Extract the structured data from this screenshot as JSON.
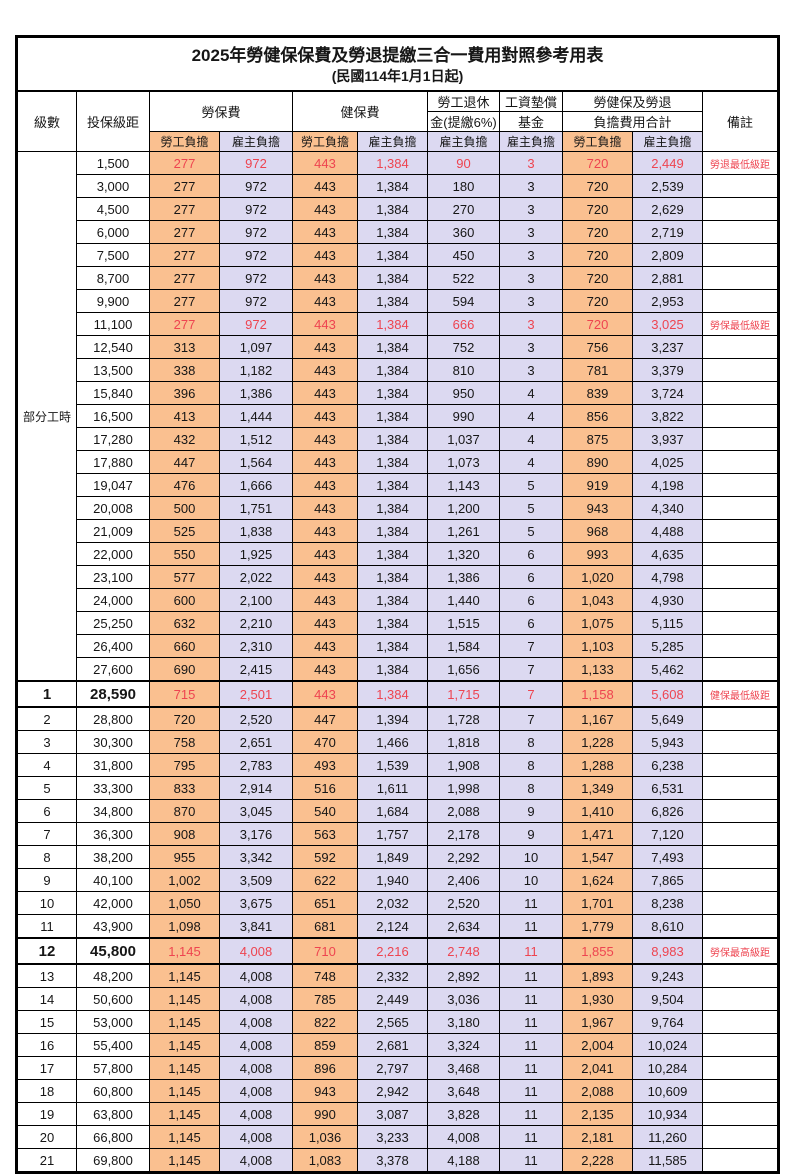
{
  "title": "2025年勞健保保費及勞退提繳三合一費用對照參考用表",
  "subtitle": "(民國114年1月1日起)",
  "header": {
    "level": "級數",
    "bracket": "投保級距",
    "labor_insurance": "勞保費",
    "health_insurance": "健保費",
    "pension_line1": "勞工退休",
    "pension_line2": "金(提繳6%)",
    "wage_fund_line1": "工資墊償",
    "wage_fund_line2": "基金",
    "total_line1": "勞健保及勞退",
    "total_line2": "負擔費用合計",
    "remark": "備註",
    "employee": "勞工負擔",
    "employer": "雇主負擔"
  },
  "part_time_label": "部分工時",
  "colors": {
    "employee_bg": "#FAC090",
    "employer_bg": "#DCD9F1",
    "highlight_red": "#EE4450",
    "border": "#000000"
  },
  "rows": [
    {
      "level": "",
      "bracket": "1,500",
      "li_emp": "277",
      "li_er": "972",
      "hi_emp": "443",
      "hi_er": "1,384",
      "pension": "90",
      "fund": "3",
      "tot_emp": "720",
      "tot_er": "2,449",
      "remark": "勞退最低級距",
      "red": true,
      "section": false
    },
    {
      "level": null,
      "bracket": "3,000",
      "li_emp": "277",
      "li_er": "972",
      "hi_emp": "443",
      "hi_er": "1,384",
      "pension": "180",
      "fund": "3",
      "tot_emp": "720",
      "tot_er": "2,539",
      "remark": "",
      "red": false,
      "section": false
    },
    {
      "level": null,
      "bracket": "4,500",
      "li_emp": "277",
      "li_er": "972",
      "hi_emp": "443",
      "hi_er": "1,384",
      "pension": "270",
      "fund": "3",
      "tot_emp": "720",
      "tot_er": "2,629",
      "remark": "",
      "red": false,
      "section": false
    },
    {
      "level": null,
      "bracket": "6,000",
      "li_emp": "277",
      "li_er": "972",
      "hi_emp": "443",
      "hi_er": "1,384",
      "pension": "360",
      "fund": "3",
      "tot_emp": "720",
      "tot_er": "2,719",
      "remark": "",
      "red": false,
      "section": false
    },
    {
      "level": null,
      "bracket": "7,500",
      "li_emp": "277",
      "li_er": "972",
      "hi_emp": "443",
      "hi_er": "1,384",
      "pension": "450",
      "fund": "3",
      "tot_emp": "720",
      "tot_er": "2,809",
      "remark": "",
      "red": false,
      "section": false
    },
    {
      "level": null,
      "bracket": "8,700",
      "li_emp": "277",
      "li_er": "972",
      "hi_emp": "443",
      "hi_er": "1,384",
      "pension": "522",
      "fund": "3",
      "tot_emp": "720",
      "tot_er": "2,881",
      "remark": "",
      "red": false,
      "section": false
    },
    {
      "level": null,
      "bracket": "9,900",
      "li_emp": "277",
      "li_er": "972",
      "hi_emp": "443",
      "hi_er": "1,384",
      "pension": "594",
      "fund": "3",
      "tot_emp": "720",
      "tot_er": "2,953",
      "remark": "",
      "red": false,
      "section": false
    },
    {
      "level": null,
      "bracket": "11,100",
      "li_emp": "277",
      "li_er": "972",
      "hi_emp": "443",
      "hi_er": "1,384",
      "pension": "666",
      "fund": "3",
      "tot_emp": "720",
      "tot_er": "3,025",
      "remark": "勞保最低級距",
      "red": true,
      "section": false
    },
    {
      "level": null,
      "bracket": "12,540",
      "li_emp": "313",
      "li_er": "1,097",
      "hi_emp": "443",
      "hi_er": "1,384",
      "pension": "752",
      "fund": "3",
      "tot_emp": "756",
      "tot_er": "3,237",
      "remark": "",
      "red": false,
      "section": false
    },
    {
      "level": null,
      "bracket": "13,500",
      "li_emp": "338",
      "li_er": "1,182",
      "hi_emp": "443",
      "hi_er": "1,384",
      "pension": "810",
      "fund": "3",
      "tot_emp": "781",
      "tot_er": "3,379",
      "remark": "",
      "red": false,
      "section": false
    },
    {
      "level": null,
      "bracket": "15,840",
      "li_emp": "396",
      "li_er": "1,386",
      "hi_emp": "443",
      "hi_er": "1,384",
      "pension": "950",
      "fund": "4",
      "tot_emp": "839",
      "tot_er": "3,724",
      "remark": "",
      "red": false,
      "section": false
    },
    {
      "level": null,
      "bracket": "16,500",
      "li_emp": "413",
      "li_er": "1,444",
      "hi_emp": "443",
      "hi_er": "1,384",
      "pension": "990",
      "fund": "4",
      "tot_emp": "856",
      "tot_er": "3,822",
      "remark": "",
      "red": false,
      "section": false
    },
    {
      "level": null,
      "bracket": "17,280",
      "li_emp": "432",
      "li_er": "1,512",
      "hi_emp": "443",
      "hi_er": "1,384",
      "pension": "1,037",
      "fund": "4",
      "tot_emp": "875",
      "tot_er": "3,937",
      "remark": "",
      "red": false,
      "section": false
    },
    {
      "level": null,
      "bracket": "17,880",
      "li_emp": "447",
      "li_er": "1,564",
      "hi_emp": "443",
      "hi_er": "1,384",
      "pension": "1,073",
      "fund": "4",
      "tot_emp": "890",
      "tot_er": "4,025",
      "remark": "",
      "red": false,
      "section": false
    },
    {
      "level": null,
      "bracket": "19,047",
      "li_emp": "476",
      "li_er": "1,666",
      "hi_emp": "443",
      "hi_er": "1,384",
      "pension": "1,143",
      "fund": "5",
      "tot_emp": "919",
      "tot_er": "4,198",
      "remark": "",
      "red": false,
      "section": false
    },
    {
      "level": null,
      "bracket": "20,008",
      "li_emp": "500",
      "li_er": "1,751",
      "hi_emp": "443",
      "hi_er": "1,384",
      "pension": "1,200",
      "fund": "5",
      "tot_emp": "943",
      "tot_er": "4,340",
      "remark": "",
      "red": false,
      "section": false
    },
    {
      "level": null,
      "bracket": "21,009",
      "li_emp": "525",
      "li_er": "1,838",
      "hi_emp": "443",
      "hi_er": "1,384",
      "pension": "1,261",
      "fund": "5",
      "tot_emp": "968",
      "tot_er": "4,488",
      "remark": "",
      "red": false,
      "section": false
    },
    {
      "level": null,
      "bracket": "22,000",
      "li_emp": "550",
      "li_er": "1,925",
      "hi_emp": "443",
      "hi_er": "1,384",
      "pension": "1,320",
      "fund": "6",
      "tot_emp": "993",
      "tot_er": "4,635",
      "remark": "",
      "red": false,
      "section": false
    },
    {
      "level": null,
      "bracket": "23,100",
      "li_emp": "577",
      "li_er": "2,022",
      "hi_emp": "443",
      "hi_er": "1,384",
      "pension": "1,386",
      "fund": "6",
      "tot_emp": "1,020",
      "tot_er": "4,798",
      "remark": "",
      "red": false,
      "section": false
    },
    {
      "level": null,
      "bracket": "24,000",
      "li_emp": "600",
      "li_er": "2,100",
      "hi_emp": "443",
      "hi_er": "1,384",
      "pension": "1,440",
      "fund": "6",
      "tot_emp": "1,043",
      "tot_er": "4,930",
      "remark": "",
      "red": false,
      "section": false
    },
    {
      "level": null,
      "bracket": "25,250",
      "li_emp": "632",
      "li_er": "2,210",
      "hi_emp": "443",
      "hi_er": "1,384",
      "pension": "1,515",
      "fund": "6",
      "tot_emp": "1,075",
      "tot_er": "5,115",
      "remark": "",
      "red": false,
      "section": false
    },
    {
      "level": null,
      "bracket": "26,400",
      "li_emp": "660",
      "li_er": "2,310",
      "hi_emp": "443",
      "hi_er": "1,384",
      "pension": "1,584",
      "fund": "7",
      "tot_emp": "1,103",
      "tot_er": "5,285",
      "remark": "",
      "red": false,
      "section": false
    },
    {
      "level": null,
      "bracket": "27,600",
      "li_emp": "690",
      "li_er": "2,415",
      "hi_emp": "443",
      "hi_er": "1,384",
      "pension": "1,656",
      "fund": "7",
      "tot_emp": "1,133",
      "tot_er": "5,462",
      "remark": "",
      "red": false,
      "section": false
    },
    {
      "level": "1",
      "bracket": "28,590",
      "li_emp": "715",
      "li_er": "2,501",
      "hi_emp": "443",
      "hi_er": "1,384",
      "pension": "1,715",
      "fund": "7",
      "tot_emp": "1,158",
      "tot_er": "5,608",
      "remark": "健保最低級距",
      "red": true,
      "section": true
    },
    {
      "level": "2",
      "bracket": "28,800",
      "li_emp": "720",
      "li_er": "2,520",
      "hi_emp": "447",
      "hi_er": "1,394",
      "pension": "1,728",
      "fund": "7",
      "tot_emp": "1,167",
      "tot_er": "5,649",
      "remark": "",
      "red": false,
      "section": false
    },
    {
      "level": "3",
      "bracket": "30,300",
      "li_emp": "758",
      "li_er": "2,651",
      "hi_emp": "470",
      "hi_er": "1,466",
      "pension": "1,818",
      "fund": "8",
      "tot_emp": "1,228",
      "tot_er": "5,943",
      "remark": "",
      "red": false,
      "section": false
    },
    {
      "level": "4",
      "bracket": "31,800",
      "li_emp": "795",
      "li_er": "2,783",
      "hi_emp": "493",
      "hi_er": "1,539",
      "pension": "1,908",
      "fund": "8",
      "tot_emp": "1,288",
      "tot_er": "6,238",
      "remark": "",
      "red": false,
      "section": false
    },
    {
      "level": "5",
      "bracket": "33,300",
      "li_emp": "833",
      "li_er": "2,914",
      "hi_emp": "516",
      "hi_er": "1,611",
      "pension": "1,998",
      "fund": "8",
      "tot_emp": "1,349",
      "tot_er": "6,531",
      "remark": "",
      "red": false,
      "section": false
    },
    {
      "level": "6",
      "bracket": "34,800",
      "li_emp": "870",
      "li_er": "3,045",
      "hi_emp": "540",
      "hi_er": "1,684",
      "pension": "2,088",
      "fund": "9",
      "tot_emp": "1,410",
      "tot_er": "6,826",
      "remark": "",
      "red": false,
      "section": false
    },
    {
      "level": "7",
      "bracket": "36,300",
      "li_emp": "908",
      "li_er": "3,176",
      "hi_emp": "563",
      "hi_er": "1,757",
      "pension": "2,178",
      "fund": "9",
      "tot_emp": "1,471",
      "tot_er": "7,120",
      "remark": "",
      "red": false,
      "section": false
    },
    {
      "level": "8",
      "bracket": "38,200",
      "li_emp": "955",
      "li_er": "3,342",
      "hi_emp": "592",
      "hi_er": "1,849",
      "pension": "2,292",
      "fund": "10",
      "tot_emp": "1,547",
      "tot_er": "7,493",
      "remark": "",
      "red": false,
      "section": false
    },
    {
      "level": "9",
      "bracket": "40,100",
      "li_emp": "1,002",
      "li_er": "3,509",
      "hi_emp": "622",
      "hi_er": "1,940",
      "pension": "2,406",
      "fund": "10",
      "tot_emp": "1,624",
      "tot_er": "7,865",
      "remark": "",
      "red": false,
      "section": false
    },
    {
      "level": "10",
      "bracket": "42,000",
      "li_emp": "1,050",
      "li_er": "3,675",
      "hi_emp": "651",
      "hi_er": "2,032",
      "pension": "2,520",
      "fund": "11",
      "tot_emp": "1,701",
      "tot_er": "8,238",
      "remark": "",
      "red": false,
      "section": false
    },
    {
      "level": "11",
      "bracket": "43,900",
      "li_emp": "1,098",
      "li_er": "3,841",
      "hi_emp": "681",
      "hi_er": "2,124",
      "pension": "2,634",
      "fund": "11",
      "tot_emp": "1,779",
      "tot_er": "8,610",
      "remark": "",
      "red": false,
      "section": false
    },
    {
      "level": "12",
      "bracket": "45,800",
      "li_emp": "1,145",
      "li_er": "4,008",
      "hi_emp": "710",
      "hi_er": "2,216",
      "pension": "2,748",
      "fund": "11",
      "tot_emp": "1,855",
      "tot_er": "8,983",
      "remark": "勞保最高級距",
      "red": true,
      "section": true
    },
    {
      "level": "13",
      "bracket": "48,200",
      "li_emp": "1,145",
      "li_er": "4,008",
      "hi_emp": "748",
      "hi_er": "2,332",
      "pension": "2,892",
      "fund": "11",
      "tot_emp": "1,893",
      "tot_er": "9,243",
      "remark": "",
      "red": false,
      "section": false
    },
    {
      "level": "14",
      "bracket": "50,600",
      "li_emp": "1,145",
      "li_er": "4,008",
      "hi_emp": "785",
      "hi_er": "2,449",
      "pension": "3,036",
      "fund": "11",
      "tot_emp": "1,930",
      "tot_er": "9,504",
      "remark": "",
      "red": false,
      "section": false
    },
    {
      "level": "15",
      "bracket": "53,000",
      "li_emp": "1,145",
      "li_er": "4,008",
      "hi_emp": "822",
      "hi_er": "2,565",
      "pension": "3,180",
      "fund": "11",
      "tot_emp": "1,967",
      "tot_er": "9,764",
      "remark": "",
      "red": false,
      "section": false
    },
    {
      "level": "16",
      "bracket": "55,400",
      "li_emp": "1,145",
      "li_er": "4,008",
      "hi_emp": "859",
      "hi_er": "2,681",
      "pension": "3,324",
      "fund": "11",
      "tot_emp": "2,004",
      "tot_er": "10,024",
      "remark": "",
      "red": false,
      "section": false
    },
    {
      "level": "17",
      "bracket": "57,800",
      "li_emp": "1,145",
      "li_er": "4,008",
      "hi_emp": "896",
      "hi_er": "2,797",
      "pension": "3,468",
      "fund": "11",
      "tot_emp": "2,041",
      "tot_er": "10,284",
      "remark": "",
      "red": false,
      "section": false
    },
    {
      "level": "18",
      "bracket": "60,800",
      "li_emp": "1,145",
      "li_er": "4,008",
      "hi_emp": "943",
      "hi_er": "2,942",
      "pension": "3,648",
      "fund": "11",
      "tot_emp": "2,088",
      "tot_er": "10,609",
      "remark": "",
      "red": false,
      "section": false
    },
    {
      "level": "19",
      "bracket": "63,800",
      "li_emp": "1,145",
      "li_er": "4,008",
      "hi_emp": "990",
      "hi_er": "3,087",
      "pension": "3,828",
      "fund": "11",
      "tot_emp": "2,135",
      "tot_er": "10,934",
      "remark": "",
      "red": false,
      "section": false
    },
    {
      "level": "20",
      "bracket": "66,800",
      "li_emp": "1,145",
      "li_er": "4,008",
      "hi_emp": "1,036",
      "hi_er": "3,233",
      "pension": "4,008",
      "fund": "11",
      "tot_emp": "2,181",
      "tot_er": "11,260",
      "remark": "",
      "red": false,
      "section": false
    },
    {
      "level": "21",
      "bracket": "69,800",
      "li_emp": "1,145",
      "li_er": "4,008",
      "hi_emp": "1,083",
      "hi_er": "3,378",
      "pension": "4,188",
      "fund": "11",
      "tot_emp": "2,228",
      "tot_er": "11,585",
      "remark": "",
      "red": false,
      "section": false
    }
  ]
}
